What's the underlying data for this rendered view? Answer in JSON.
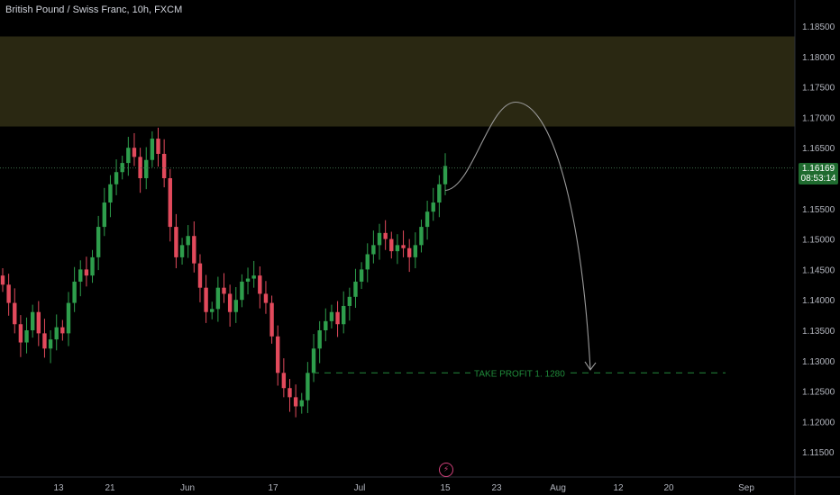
{
  "symbol_title": "British Pound / Swiss Franc, 10h, FXCM",
  "current_price": "1.16169",
  "countdown": "08:53:14",
  "event_icon": "lightning-icon",
  "colors": {
    "background": "#000000",
    "up": "#2e9e4c",
    "down": "#e24a5c",
    "zone_fill": "#2a2812",
    "target_line": "#1f7a34",
    "projection": "#9a9a9a",
    "axis_text": "#b2b5be"
  },
  "chart_data": {
    "type": "candlestick",
    "title": "British Pound / Swiss Franc, 10h, FXCM",
    "y_axis": {
      "position": "right",
      "range": [
        1.111,
        1.1885
      ],
      "ticks": [
        "1.18500",
        "1.18000",
        "1.17500",
        "1.17000",
        "1.16500",
        "1.16000",
        "1.15500",
        "1.15000",
        "1.14500",
        "1.14000",
        "1.13500",
        "1.13000",
        "1.12500",
        "1.12000",
        "1.11500"
      ]
    },
    "x_axis": {
      "ticks": [
        "13",
        "21",
        "Jun",
        "17",
        "Jul",
        "15",
        "23",
        "Aug",
        "12",
        "20",
        "Sep"
      ]
    },
    "resistance_zone": {
      "from": 1.1685,
      "to": 1.1833
    },
    "take_profit": {
      "label": "TAKE PROFIT 1. 1280",
      "price": 1.128
    },
    "projection_path": [
      {
        "date": "Jul 15",
        "price": 1.158
      },
      {
        "date": "Jul 26",
        "price": 1.1725
      },
      {
        "date": "Aug 05",
        "price": 1.1285
      }
    ],
    "close_series": [
      1.1425,
      1.1395,
      1.136,
      1.133,
      1.135,
      1.138,
      1.1345,
      1.132,
      1.1335,
      1.1355,
      1.1345,
      1.1395,
      1.143,
      1.145,
      1.144,
      1.147,
      1.152,
      1.156,
      1.159,
      1.161,
      1.1625,
      1.165,
      1.1635,
      1.16,
      1.163,
      1.1665,
      1.164,
      1.16,
      1.152,
      1.147,
      1.149,
      1.1505,
      1.146,
      1.142,
      1.138,
      1.1385,
      1.142,
      1.141,
      1.138,
      1.14,
      1.143,
      1.1435,
      1.144,
      1.141,
      1.1395,
      1.134,
      1.128,
      1.1255,
      1.124,
      1.1225,
      1.1235,
      1.128,
      1.132,
      1.135,
      1.1365,
      1.138,
      1.136,
      1.139,
      1.1405,
      1.143,
      1.145,
      1.1475,
      1.149,
      1.151,
      1.15,
      1.148,
      1.149,
      1.1485,
      1.147,
      1.149,
      1.152,
      1.1545,
      1.156,
      1.159,
      1.162
    ]
  }
}
